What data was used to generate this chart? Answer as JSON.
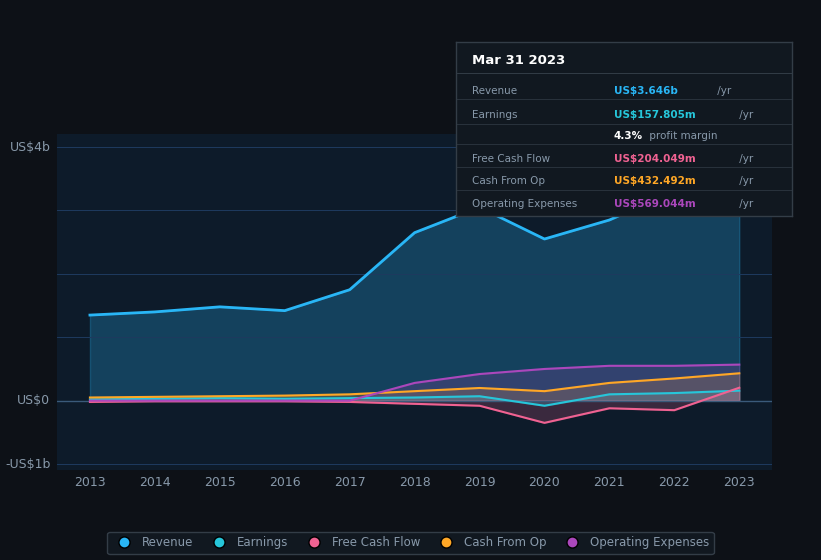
{
  "background_color": "#0d1117",
  "plot_bg_color": "#0d1b2a",
  "years": [
    2013,
    2014,
    2015,
    2016,
    2017,
    2018,
    2019,
    2020,
    2021,
    2022,
    2023
  ],
  "revenue": [
    1.35,
    1.4,
    1.48,
    1.42,
    1.75,
    2.65,
    3.05,
    2.55,
    2.85,
    3.3,
    3.646
  ],
  "earnings": [
    0.02,
    0.03,
    0.04,
    0.03,
    0.04,
    0.05,
    0.07,
    -0.08,
    0.1,
    0.12,
    0.158
  ],
  "free_cash_flow": [
    -0.02,
    -0.01,
    -0.01,
    -0.01,
    -0.02,
    -0.05,
    -0.08,
    -0.35,
    -0.12,
    -0.15,
    0.204
  ],
  "cash_from_op": [
    0.05,
    0.06,
    0.07,
    0.08,
    0.1,
    0.15,
    0.2,
    0.15,
    0.28,
    0.35,
    0.432
  ],
  "operating_exp": [
    0.0,
    0.0,
    0.0,
    0.0,
    0.0,
    0.28,
    0.42,
    0.5,
    0.55,
    0.55,
    0.569
  ],
  "revenue_color": "#29b6f6",
  "earnings_color": "#26c6da",
  "free_cash_flow_color": "#f06292",
  "cash_from_op_color": "#ffa726",
  "operating_exp_color": "#ab47bc",
  "ylim": [
    -1.1,
    4.2
  ],
  "yticks": [
    -1.0,
    0.0,
    1.0,
    2.0,
    3.0,
    4.0
  ],
  "ytick_labels": [
    "-US$1b",
    "US$0",
    "",
    "",
    "",
    "US$4b"
  ],
  "grid_color": "#1e3a5f",
  "text_color": "#8899aa",
  "tooltip_bg": "#111820",
  "tooltip_border": "#333d47",
  "info_title": "Mar 31 2023",
  "info_revenue_label": "Revenue",
  "info_revenue_val": "US$3.646b",
  "info_earnings_label": "Earnings",
  "info_earnings_val": "US$157.805m",
  "info_margin_pct": "4.3%",
  "info_margin_rest": " profit margin",
  "info_fcf_label": "Free Cash Flow",
  "info_fcf_val": "US$204.049m",
  "info_cfo_label": "Cash From Op",
  "info_cfo_val": "US$432.492m",
  "info_opex_label": "Operating Expenses",
  "info_opex_val": "US$569.044m",
  "legend_labels": [
    "Revenue",
    "Earnings",
    "Free Cash Flow",
    "Cash From Op",
    "Operating Expenses"
  ],
  "legend_colors": [
    "#29b6f6",
    "#26c6da",
    "#f06292",
    "#ffa726",
    "#ab47bc"
  ]
}
